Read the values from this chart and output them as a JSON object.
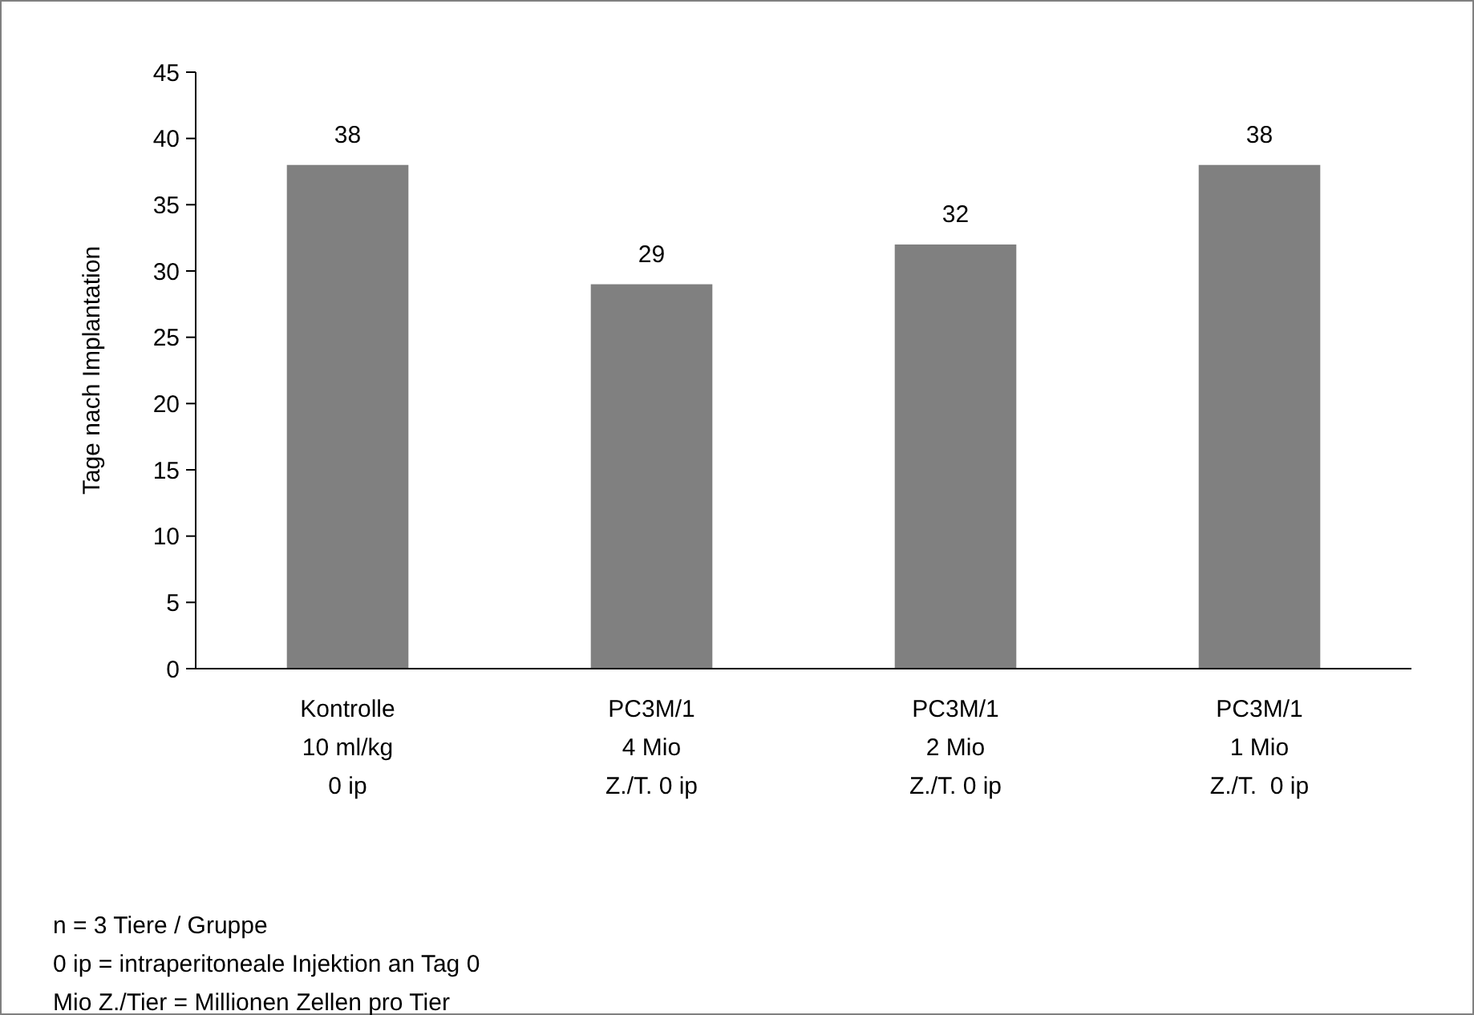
{
  "chart_data": {
    "type": "bar",
    "ylabel": "Tage nach Implantation",
    "categories": [
      "Kontrolle\n10 ml/kg\n0 ip",
      "PC3M/1\n4 Mio\nZ./T. 0 ip",
      "PC3M/1\n2 Mio\nZ./T. 0 ip",
      "PC3M/1\n1 Mio\nZ./T.  0 ip"
    ],
    "values": [
      38,
      29,
      32,
      38
    ],
    "color": "#808080",
    "data_labels": true,
    "ylim": [
      0,
      45
    ],
    "yticks": [
      0,
      5,
      10,
      15,
      20,
      25,
      30,
      35,
      40,
      45
    ],
    "grid": false,
    "annotations": [
      "n = 3 Tiere / Gruppe",
      "0 ip = intraperitoneale Injektion an Tag 0",
      "Mio Z./Tier = Millionen Zellen pro Tier"
    ]
  }
}
